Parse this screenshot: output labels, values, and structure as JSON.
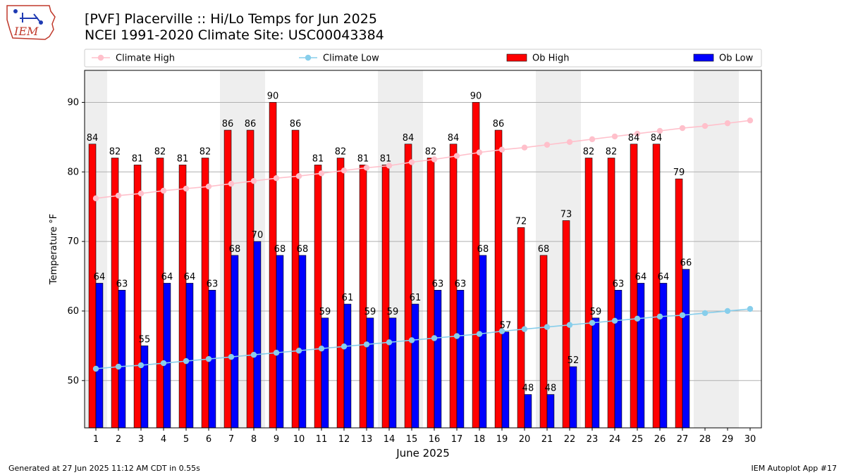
{
  "header": {
    "title_line1": "[PVF] Placerville :: Hi/Lo Temps for Jun 2025",
    "title_line2": "NCEI 1991-2020 Climate Site: USC00043384"
  },
  "logo": {
    "text": "IEM",
    "icon": "iem-iowa-logo"
  },
  "footer": {
    "generated": "Generated at 27 Jun 2025 11:12 AM CDT in 0.55s",
    "app": "IEM Autoplot App #17"
  },
  "colors": {
    "ob_high": "#ff0000",
    "ob_low": "#0000ff",
    "climate_high": "#ffc0cb",
    "climate_low": "#87ceeb",
    "weekend_shade": "#eeeeee",
    "grid": "#b0b0b0"
  },
  "chart_data": {
    "type": "bar",
    "xlabel": "June 2025",
    "ylabel": "Temperature °F",
    "ylim": [
      43.2,
      94.6
    ],
    "yticks": [
      50,
      60,
      70,
      80,
      90
    ],
    "grid": "horizontal",
    "legend_position": "top",
    "categories": [
      "1",
      "2",
      "3",
      "4",
      "5",
      "6",
      "7",
      "8",
      "9",
      "10",
      "11",
      "12",
      "13",
      "14",
      "15",
      "16",
      "17",
      "18",
      "19",
      "20",
      "21",
      "22",
      "23",
      "24",
      "25",
      "26",
      "27",
      "28",
      "29",
      "30"
    ],
    "weekend_shaded_days": [
      1,
      7,
      8,
      14,
      15,
      21,
      22,
      28,
      29
    ],
    "series": [
      {
        "name": "Ob High",
        "kind": "bar",
        "color": "#ff0000",
        "values": [
          84,
          82,
          81,
          82,
          81,
          82,
          86,
          86,
          90,
          86,
          81,
          82,
          81,
          81,
          84,
          82,
          84,
          90,
          86,
          72,
          68,
          73,
          82,
          82,
          84,
          84,
          79,
          null,
          null,
          null
        ]
      },
      {
        "name": "Ob Low",
        "kind": "bar",
        "color": "#0000ff",
        "values": [
          64,
          63,
          55,
          64,
          64,
          63,
          68,
          70,
          68,
          68,
          59,
          61,
          59,
          59,
          61,
          63,
          63,
          68,
          57,
          48,
          48,
          52,
          59,
          63,
          64,
          64,
          66,
          null,
          null,
          null
        ]
      },
      {
        "name": "Climate High",
        "kind": "line",
        "color": "#ffc0cb",
        "values": [
          76.2,
          76.6,
          76.9,
          77.3,
          77.6,
          77.9,
          78.3,
          78.7,
          79.1,
          79.4,
          79.8,
          80.2,
          80.6,
          80.9,
          81.4,
          81.8,
          82.3,
          82.8,
          83.2,
          83.5,
          83.9,
          84.3,
          84.7,
          85.1,
          85.5,
          85.9,
          86.3,
          86.6,
          87.0,
          87.4
        ]
      },
      {
        "name": "Climate Low",
        "kind": "line",
        "color": "#87ceeb",
        "values": [
          51.7,
          52.0,
          52.2,
          52.5,
          52.8,
          53.1,
          53.4,
          53.7,
          54.0,
          54.3,
          54.6,
          54.9,
          55.2,
          55.5,
          55.8,
          56.1,
          56.4,
          56.7,
          57.1,
          57.4,
          57.7,
          58.0,
          58.3,
          58.6,
          58.9,
          59.2,
          59.4,
          59.7,
          60.0,
          60.3
        ]
      }
    ]
  }
}
